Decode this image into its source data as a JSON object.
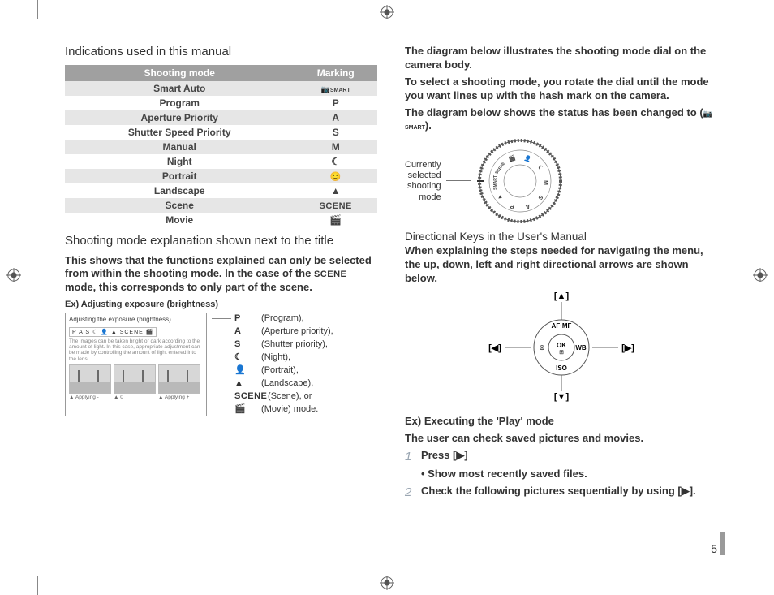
{
  "left": {
    "h1": "Indications used in this manual",
    "table": {
      "head": [
        "Shooting mode",
        "Marking"
      ],
      "rows": [
        {
          "mode": "Smart Auto",
          "mark": "SMART",
          "band": true,
          "icon": "smart"
        },
        {
          "mode": "Program",
          "mark": "P",
          "band": false
        },
        {
          "mode": "Aperture Priority",
          "mark": "A",
          "band": true
        },
        {
          "mode": "Shutter Speed Priority",
          "mark": "S",
          "band": false
        },
        {
          "mode": "Manual",
          "mark": "M",
          "band": true
        },
        {
          "mode": "Night",
          "mark": "☾",
          "band": false
        },
        {
          "mode": "Portrait",
          "mark": "👤",
          "band": true,
          "glyph": "●"
        },
        {
          "mode": "Landscape",
          "mark": "▲▲",
          "band": false
        },
        {
          "mode": "Scene",
          "mark": "SCENE",
          "band": true,
          "scene": true
        },
        {
          "mode": "Movie",
          "mark": "🎬",
          "band": false
        }
      ]
    },
    "h2": "Shooting mode explanation shown next to the title",
    "p1a": "This shows that the functions explained can only be selected from  within the shooting mode. In the case of the ",
    "p1scene": "SCENE",
    "p1b": " mode, this corresponds to only part of the scene.",
    "ex_title": "Ex) Adjusting exposure (brightness)",
    "panel": {
      "title": "Adjusting the exposure (brightness)",
      "strip": "P A S ☾ 👤 ▲ SCENE 🎬",
      "note": "The images can be taken bright or dark according to the amount of light. In this case, appropriate adjustment can be made by controlling the amount of light entered into the lens.",
      "caps": [
        "▲ Applying -",
        "▲ 0",
        "▲ Applying +"
      ]
    },
    "legend": [
      {
        "sym": "P",
        "txt": " (Program),"
      },
      {
        "sym": "A",
        "txt": " (Aperture priority),"
      },
      {
        "sym": "S",
        "txt": " (Shutter priority),"
      },
      {
        "sym": "☾",
        "txt": " (Night),"
      },
      {
        "sym": "👤",
        "txt": " (Portrait),"
      },
      {
        "sym": "▲",
        "txt": " (Landscape),"
      },
      {
        "sym": "SCENE",
        "txt": " (Scene), or",
        "scene": true
      },
      {
        "sym": "🎬",
        "txt": " (Movie) mode."
      }
    ]
  },
  "right": {
    "p1": "The diagram below illustrates the shooting mode dial on the camera body.",
    "p2": "To select a shooting mode, you rotate the dial until the mode you want lines up with the hash mark on the camera.",
    "p3a": "The diagram below shows the status has been changed to (",
    "p3smart": "SMART",
    "p3b": ").",
    "dial_label": "Currently\nselected\nshooting\nmode",
    "dial_marks": [
      "SMART",
      "SCENE",
      "🎬",
      "👤",
      "☾",
      "M",
      "S",
      "A",
      "P",
      "▲"
    ],
    "h3a": "Directional Keys in the User's Manual",
    "p4": "When explaining the steps needed for navigating the menu, the up, down, left and right directional arrows are shown below.",
    "pad": {
      "up": "AF·MF",
      "right": "WB",
      "down": "ISO",
      "left": "⊞",
      "center": "OK"
    },
    "arrows": {
      "up": "[▲]",
      "down": "[▼]",
      "left": "[◀]",
      "right": "[▶]"
    },
    "ex2": "Ex) Executing the 'Play' mode",
    "p5": "The user can check saved pictures and movies.",
    "steps": [
      {
        "n": "1",
        "t": "Press [▶]"
      },
      {
        "n": "",
        "t": "• Show most recently saved files.",
        "bullet": true
      },
      {
        "n": "2",
        "t": "Check the following pictures sequentially by using [▶]."
      }
    ],
    "page_num": "5"
  },
  "colors": {
    "header_bg": "#a0a0a0",
    "band_bg": "#e6e6e6",
    "text": "#333333",
    "muted": "#888888"
  }
}
